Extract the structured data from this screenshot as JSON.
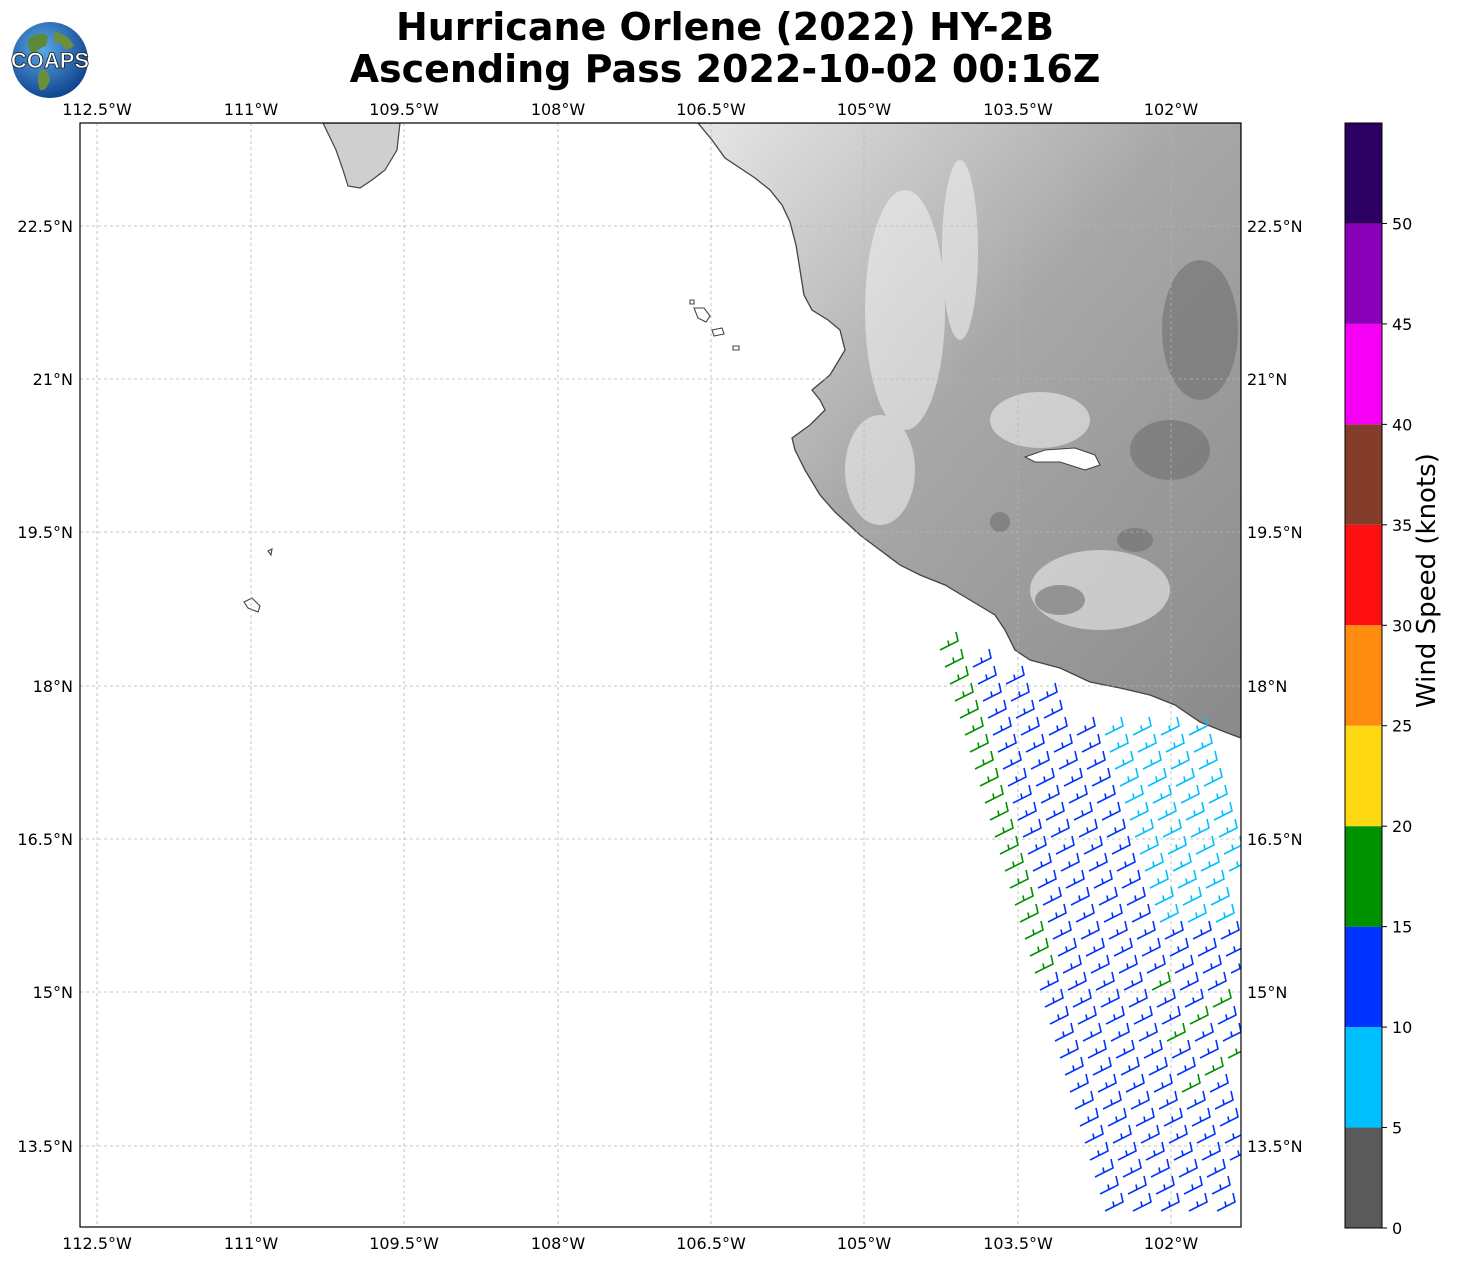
{
  "title": {
    "line1": "Hurricane Orlene (2022) HY-2B",
    "line2": "Ascending Pass 2022-10-02 00:16Z"
  },
  "logo": {
    "text": "COAPS",
    "icon": "globe-logo-icon"
  },
  "map": {
    "lon_ticks": [
      "112.5°W",
      "111°W",
      "109.5°W",
      "108°W",
      "106.5°W",
      "105°W",
      "103.5°W",
      "102°W"
    ],
    "lat_ticks": [
      "22.5°N",
      "21°N",
      "19.5°N",
      "18°N",
      "16.5°N",
      "15°N",
      "13.5°N"
    ],
    "gridlines": true,
    "land_shading": "grayscale elevation",
    "lon_range": [
      -112.68,
      -101.32
    ],
    "lat_range": [
      12.82,
      23.62
    ]
  },
  "colorbar": {
    "label": "Wind Speed (knots)",
    "ticks": [
      "0",
      "5",
      "10",
      "15",
      "20",
      "25",
      "30",
      "35",
      "40",
      "45",
      "50"
    ],
    "bins": [
      {
        "from": 0,
        "to": 5,
        "color": "#5a5a5a"
      },
      {
        "from": 5,
        "to": 10,
        "color": "#00bfff"
      },
      {
        "from": 10,
        "to": 15,
        "color": "#0033ff"
      },
      {
        "from": 15,
        "to": 20,
        "color": "#009100"
      },
      {
        "from": 20,
        "to": 25,
        "color": "#ffd814"
      },
      {
        "from": 25,
        "to": 30,
        "color": "#ff8c10"
      },
      {
        "from": 30,
        "to": 35,
        "color": "#ff1010"
      },
      {
        "from": 35,
        "to": 40,
        "color": "#833d2a"
      },
      {
        "from": 40,
        "to": 45,
        "color": "#f500f5"
      },
      {
        "from": 45,
        "to": 50,
        "color": "#8a00b8"
      },
      {
        "from": 50,
        "to": 55,
        "color": "#2c0060"
      }
    ]
  },
  "wind_barbs": {
    "swath_lat_range": [
      12.9,
      18.4
    ],
    "speed_range_knots": [
      8,
      19
    ],
    "predominant_colors": [
      "#0033ff",
      "#00bfff",
      "#009100"
    ]
  }
}
